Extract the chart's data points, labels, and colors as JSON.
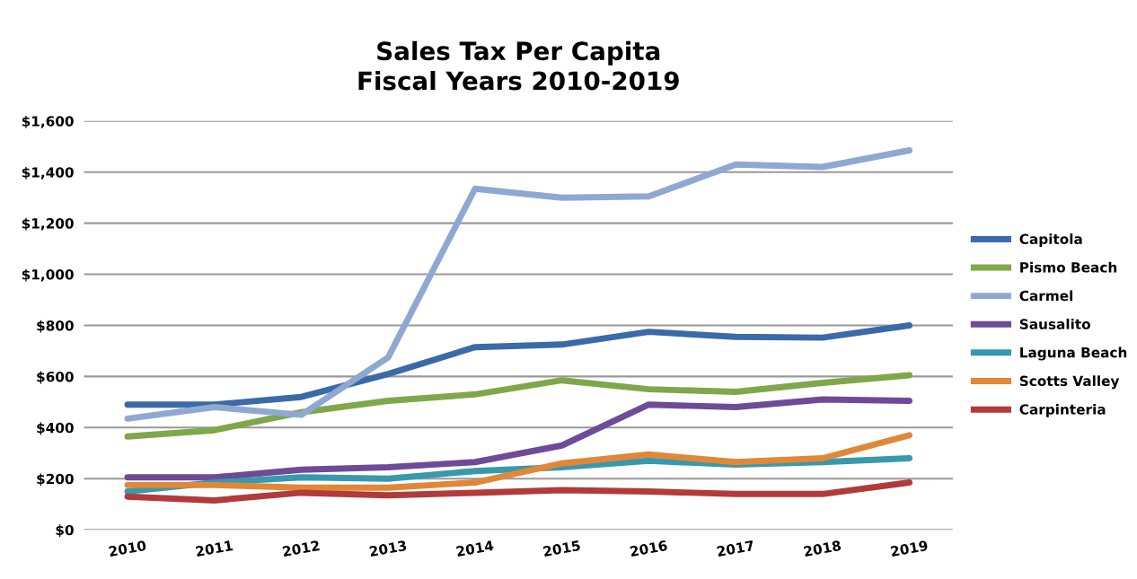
{
  "chart_data": {
    "type": "line",
    "title": "Sales Tax Per Capita\nFiscal Years 2010-2019",
    "categories": [
      "2010",
      "2011",
      "2012",
      "2013",
      "2014",
      "2015",
      "2016",
      "2017",
      "2018",
      "2019"
    ],
    "series": [
      {
        "name": "Capitola",
        "color": "#3b6aa8",
        "values": [
          490,
          490,
          520,
          610,
          715,
          725,
          775,
          755,
          752,
          800
        ]
      },
      {
        "name": "Pismo Beach",
        "color": "#7ea84a",
        "values": [
          365,
          390,
          460,
          505,
          530,
          585,
          550,
          540,
          575,
          605
        ]
      },
      {
        "name": "Carmel",
        "color": "#8ea8d2",
        "values": [
          435,
          480,
          450,
          675,
          1335,
          1300,
          1305,
          1430,
          1420,
          1485
        ]
      },
      {
        "name": "Sausalito",
        "color": "#6e4a98",
        "values": [
          205,
          205,
          235,
          245,
          265,
          330,
          490,
          480,
          510,
          505
        ]
      },
      {
        "name": "Laguna Beach",
        "color": "#3799ae",
        "values": [
          150,
          185,
          205,
          200,
          230,
          245,
          270,
          255,
          265,
          280
        ]
      },
      {
        "name": "Scotts Valley",
        "color": "#e08838",
        "values": [
          175,
          175,
          165,
          165,
          185,
          260,
          295,
          265,
          280,
          370
        ]
      },
      {
        "name": "Carpinteria",
        "color": "#b33a3a",
        "values": [
          130,
          115,
          145,
          135,
          145,
          155,
          150,
          140,
          140,
          185
        ]
      }
    ],
    "ylim": [
      0,
      1600
    ],
    "yticks": [
      {
        "value": 0,
        "label": "$0"
      },
      {
        "value": 200,
        "label": "$200"
      },
      {
        "value": 400,
        "label": "$400"
      },
      {
        "value": 600,
        "label": "$600"
      },
      {
        "value": 800,
        "label": "$800"
      },
      {
        "value": 1000,
        "label": "$1,000"
      },
      {
        "value": 1200,
        "label": "$1,200"
      },
      {
        "value": 1400,
        "label": "$1,400"
      },
      {
        "value": 1600,
        "label": "$1,600"
      }
    ],
    "grid": "y",
    "legend": "right",
    "marker": "none",
    "line_style": "solid"
  }
}
